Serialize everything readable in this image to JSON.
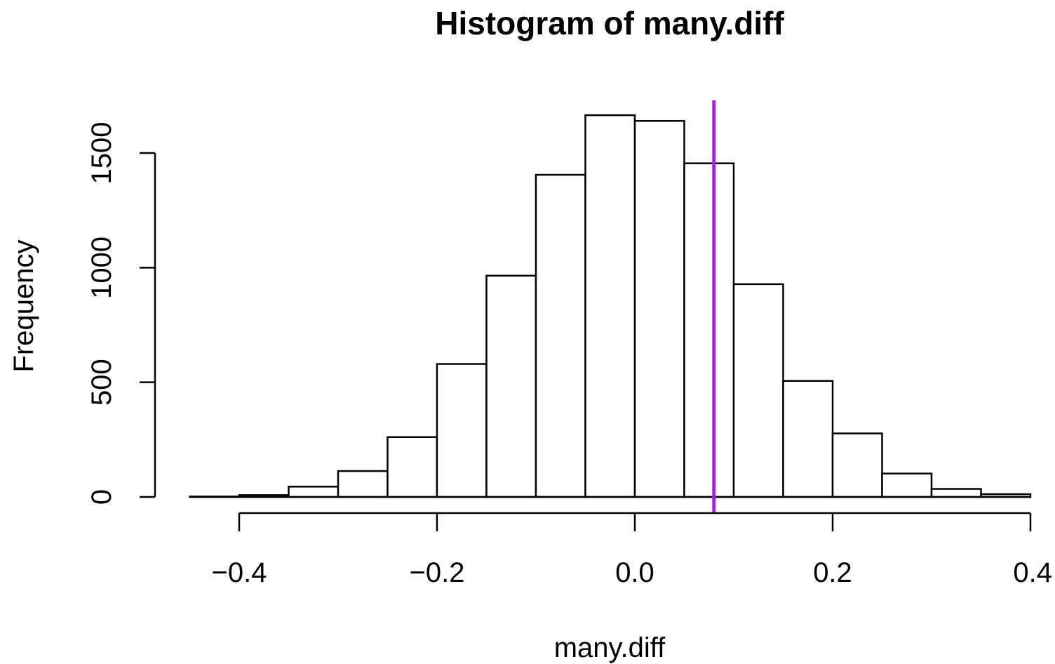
{
  "chart_data": {
    "type": "bar",
    "title": "Histogram of many.diff",
    "xlabel": "many.diff",
    "ylabel": "Frequency",
    "xlim": [
      -0.45,
      0.4
    ],
    "ylim": [
      0,
      1700
    ],
    "x_ticks": [
      -0.4,
      -0.2,
      0.0,
      0.2,
      0.4
    ],
    "x_tick_labels": [
      "−0.4",
      "−0.2",
      "0.0",
      "0.2",
      "0.4"
    ],
    "y_ticks": [
      0,
      500,
      1000,
      1500
    ],
    "y_tick_labels": [
      "0",
      "500",
      "1000",
      "1500"
    ],
    "bins": [
      {
        "x0": -0.45,
        "x1": -0.4,
        "count": 2
      },
      {
        "x0": -0.4,
        "x1": -0.35,
        "count": 8
      },
      {
        "x0": -0.35,
        "x1": -0.3,
        "count": 45
      },
      {
        "x0": -0.3,
        "x1": -0.25,
        "count": 113
      },
      {
        "x0": -0.25,
        "x1": -0.2,
        "count": 261
      },
      {
        "x0": -0.2,
        "x1": -0.15,
        "count": 580
      },
      {
        "x0": -0.15,
        "x1": -0.1,
        "count": 965
      },
      {
        "x0": -0.1,
        "x1": -0.05,
        "count": 1405
      },
      {
        "x0": -0.05,
        "x1": 0.0,
        "count": 1665
      },
      {
        "x0": 0.0,
        "x1": 0.05,
        "count": 1640
      },
      {
        "x0": 0.05,
        "x1": 0.1,
        "count": 1455
      },
      {
        "x0": 0.1,
        "x1": 0.15,
        "count": 928
      },
      {
        "x0": 0.15,
        "x1": 0.2,
        "count": 506
      },
      {
        "x0": 0.2,
        "x1": 0.25,
        "count": 277
      },
      {
        "x0": 0.25,
        "x1": 0.3,
        "count": 102
      },
      {
        "x0": 0.3,
        "x1": 0.35,
        "count": 35
      },
      {
        "x0": 0.35,
        "x1": 0.4,
        "count": 12
      }
    ],
    "reference_line": {
      "x": 0.08,
      "color": "#a020f0"
    },
    "grid": false,
    "legend": "none"
  }
}
